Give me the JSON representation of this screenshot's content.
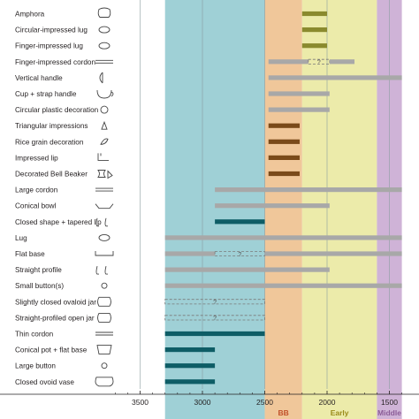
{
  "chart_data": {
    "type": "bar",
    "orientation": "horizontal-range",
    "x_reversed": true,
    "xlim": [
      3700,
      1400
    ],
    "xticks": [
      3500,
      3000,
      2500,
      2000,
      1500
    ],
    "periods": [
      {
        "label": "",
        "from": 3300,
        "to": 2500,
        "color": "#9fd0d6"
      },
      {
        "label": "BB",
        "from": 2500,
        "to": 2200,
        "color": "#f0c79a",
        "label_color": "#c0502a"
      },
      {
        "label": "Early",
        "from": 2200,
        "to": 1600,
        "color": "#ecebaa",
        "label_color": "#9a8a1a"
      },
      {
        "label": "Middle",
        "from": 1600,
        "to": 1400,
        "color": "#cfb3d7",
        "label_color": "#8b5c97"
      }
    ],
    "colors": {
      "grey": "#a8a8a8",
      "teal": "#0e5d66",
      "olive": "#8a8a2e",
      "brown": "#7a4a1a"
    },
    "categories": [
      "Amphora",
      "Circular-impressed lug",
      "Finger-impressed lug",
      "Finger-impressed cordon",
      "Vertical handle",
      "Cup + strap handle",
      "Circular plastic decoration",
      "Triangular impressions",
      "Rice grain decoration",
      "Impressed lip",
      "Decorated Bell Beaker",
      "Large cordon",
      "Conical bowl",
      "Closed shape + tapered lip",
      "Lug",
      "Flat base",
      "Straight profile",
      "Small button(s)",
      "Slightly closed ovaloid jar",
      "Straight-profiled open jar",
      "Thin cordon",
      "Conical pot + flat base",
      "Large button",
      "Closed ovoid vase"
    ],
    "icons": [
      "amphora-icon",
      "lug-icon",
      "lug-icon",
      "cordon-icon",
      "handle-icon",
      "cup-icon",
      "circle-icon",
      "triangle-icon",
      "rice-icon",
      "lip-icon",
      "beaker-icon",
      "cordon-icon",
      "bowl-icon",
      "profile-icon",
      "lug-icon",
      "base-icon",
      "profile-icon",
      "button-icon",
      "jar-icon",
      "jar-icon",
      "cordon-icon",
      "pot-icon",
      "button-icon",
      "vase-icon"
    ],
    "bars": [
      [
        {
          "from": 2200,
          "to": 2000,
          "color": "olive"
        }
      ],
      [
        {
          "from": 2200,
          "to": 2000,
          "color": "olive"
        }
      ],
      [
        {
          "from": 2200,
          "to": 2000,
          "color": "olive"
        }
      ],
      [
        {
          "from": 2470,
          "to": 2150,
          "color": "grey"
        },
        {
          "from": 2150,
          "to": 1980,
          "color": "grey",
          "dashed": true
        },
        {
          "from": 1980,
          "to": 1780,
          "color": "grey"
        }
      ],
      [
        {
          "from": 2470,
          "to": 1400,
          "color": "grey"
        }
      ],
      [
        {
          "from": 2470,
          "to": 1980,
          "color": "grey"
        }
      ],
      [
        {
          "from": 2470,
          "to": 1980,
          "color": "grey"
        }
      ],
      [
        {
          "from": 2470,
          "to": 2220,
          "color": "brown"
        }
      ],
      [
        {
          "from": 2470,
          "to": 2220,
          "color": "brown"
        }
      ],
      [
        {
          "from": 2470,
          "to": 2220,
          "color": "brown"
        }
      ],
      [
        {
          "from": 2470,
          "to": 2220,
          "color": "brown"
        }
      ],
      [
        {
          "from": 2900,
          "to": 1400,
          "color": "grey"
        }
      ],
      [
        {
          "from": 2900,
          "to": 1980,
          "color": "grey"
        }
      ],
      [
        {
          "from": 2900,
          "to": 2500,
          "color": "teal"
        }
      ],
      [
        {
          "from": 3300,
          "to": 1400,
          "color": "grey"
        }
      ],
      [
        {
          "from": 3300,
          "to": 2900,
          "color": "grey"
        },
        {
          "from": 2900,
          "to": 2500,
          "color": "grey",
          "dashed": true
        },
        {
          "from": 2500,
          "to": 1400,
          "color": "grey"
        }
      ],
      [
        {
          "from": 3300,
          "to": 1980,
          "color": "grey"
        }
      ],
      [
        {
          "from": 3300,
          "to": 1400,
          "color": "grey"
        }
      ],
      [
        {
          "from": 3300,
          "to": 2500,
          "color": "grey",
          "dashed": true
        }
      ],
      [
        {
          "from": 3300,
          "to": 2500,
          "color": "grey",
          "dashed": true
        }
      ],
      [
        {
          "from": 3300,
          "to": 2500,
          "color": "teal"
        }
      ],
      [
        {
          "from": 3300,
          "to": 2900,
          "color": "teal"
        }
      ],
      [
        {
          "from": 3300,
          "to": 2900,
          "color": "teal"
        }
      ],
      [
        {
          "from": 3300,
          "to": 2900,
          "color": "teal"
        }
      ]
    ],
    "dashed_mark": "?"
  }
}
